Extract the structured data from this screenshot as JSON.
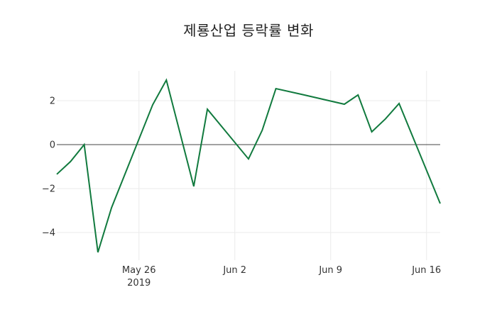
{
  "chart_data": {
    "type": "line",
    "title": "제룡산업 등락률 변화",
    "xlabel": "",
    "ylabel": "",
    "x": [
      "2019-05-20",
      "2019-05-21",
      "2019-05-22",
      "2019-05-23",
      "2019-05-24",
      "2019-05-27",
      "2019-05-28",
      "2019-05-29",
      "2019-05-30",
      "2019-05-31",
      "2019-06-03",
      "2019-06-04",
      "2019-06-05",
      "2019-06-07",
      "2019-06-10",
      "2019-06-11",
      "2019-06-12",
      "2019-06-13",
      "2019-06-14",
      "2019-06-17"
    ],
    "series": [
      {
        "name": "등락률",
        "color": "#117a3e",
        "values": [
          -1.35,
          -0.77,
          0.0,
          -4.9,
          -2.87,
          1.81,
          2.94,
          0.52,
          -1.9,
          1.61,
          -0.65,
          0.65,
          2.55,
          2.27,
          1.84,
          2.26,
          0.58,
          1.17,
          1.87,
          -2.68
        ]
      }
    ],
    "x_ticks": [
      {
        "date": "2019-05-26",
        "label": "May 26",
        "sublabel": "2019"
      },
      {
        "date": "2019-06-02",
        "label": "Jun 2",
        "sublabel": ""
      },
      {
        "date": "2019-06-09",
        "label": "Jun 9",
        "sublabel": ""
      },
      {
        "date": "2019-06-16",
        "label": "Jun 16",
        "sublabel": ""
      }
    ],
    "y_ticks": [
      {
        "value": 2,
        "label": "2"
      },
      {
        "value": 0,
        "label": "0"
      },
      {
        "value": -2,
        "label": "−2"
      },
      {
        "value": -4,
        "label": "−4"
      }
    ],
    "xlim": [
      "2019-05-20",
      "2019-06-17"
    ],
    "ylim": [
      -5.2,
      3.3
    ],
    "grid": true,
    "zero_line": true,
    "legend": "none"
  }
}
